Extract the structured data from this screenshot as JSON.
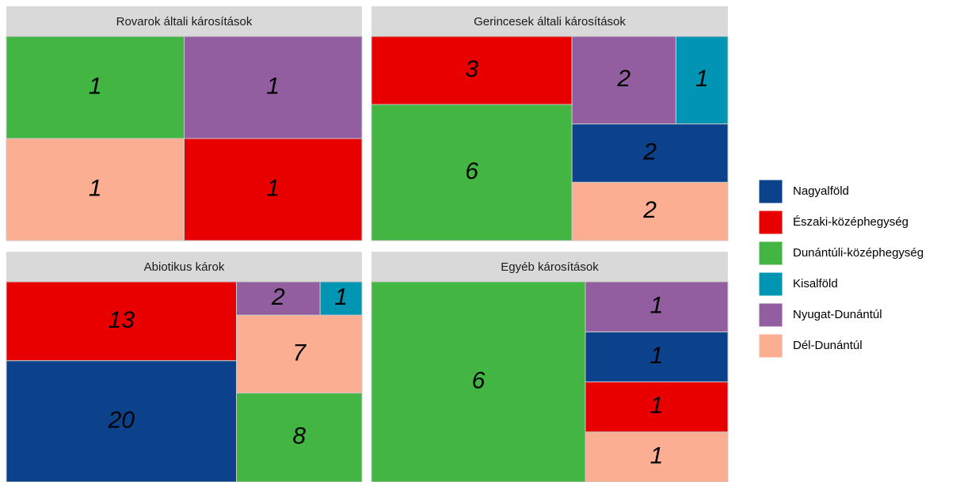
{
  "legend": [
    {
      "name": "Nagyalföld",
      "color": "#0b428b"
    },
    {
      "name": "Északi-középhegység",
      "color": "#e80000"
    },
    {
      "name": "Dunántúli-középhegység",
      "color": "#43b543"
    },
    {
      "name": "Kisalföld",
      "color": "#0096b3"
    },
    {
      "name": "Nyugat-Dunántúl",
      "color": "#925ea0"
    },
    {
      "name": "Dél-Dunántúl",
      "color": "#fcae92"
    }
  ],
  "chart_data": [
    {
      "type": "treemap",
      "title": "Rovarok általi károsítások",
      "categories": [
        "Dél-Dunántúl",
        "Dunántúli-középhegység",
        "Északi-középhegység",
        "Nyugat-Dunántúl"
      ],
      "values": [
        1,
        1,
        1,
        1
      ]
    },
    {
      "type": "treemap",
      "title": "Gerincesek általi károsítások",
      "categories": [
        "Dunántúli-középhegység",
        "Északi-középhegység",
        "Dél-Dunántúl",
        "Nagyalföld",
        "Nyugat-Dunántúl",
        "Kisalföld"
      ],
      "values": [
        6,
        3,
        2,
        2,
        2,
        1
      ]
    },
    {
      "type": "treemap",
      "title": "Abiotikus károk",
      "categories": [
        "Nagyalföld",
        "Északi-középhegység",
        "Dunántúli-középhegység",
        "Dél-Dunántúl",
        "Nyugat-Dunántúl",
        "Kisalföld"
      ],
      "values": [
        20,
        13,
        8,
        7,
        2,
        1
      ]
    },
    {
      "type": "treemap",
      "title": "Egyéb károsítások",
      "categories": [
        "Dunántúli-középhegység",
        "Dél-Dunántúl",
        "Északi-középhegység",
        "Nagyalföld",
        "Nyugat-Dunántúl"
      ],
      "values": [
        6,
        1,
        1,
        1,
        1
      ]
    }
  ]
}
